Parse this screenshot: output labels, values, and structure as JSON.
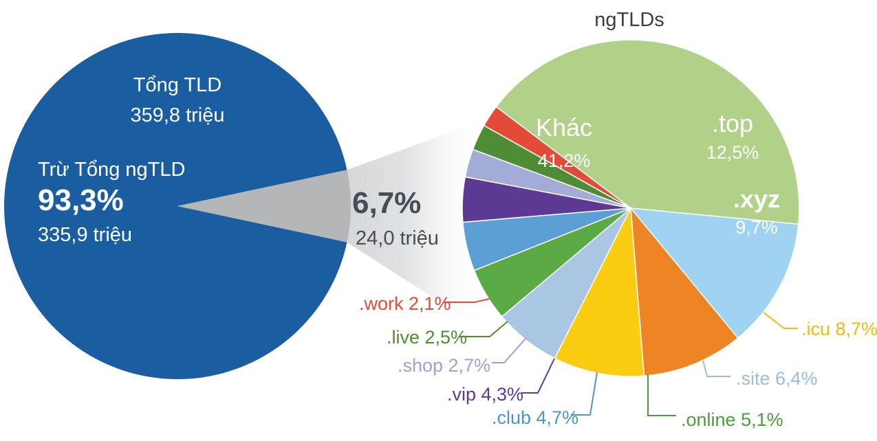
{
  "chart_data": [
    {
      "type": "pie",
      "title": "",
      "center_title": "Tổng TLD",
      "center_value": "359,8 triệu",
      "slices": [
        {
          "name": "Trừ Tổng ngTLD",
          "value": 93.3,
          "pct_label": "93,3%",
          "amount_label": "335,9 triệu",
          "color": "#1a5ea1"
        },
        {
          "name": "",
          "value": 6.7,
          "pct_label": "6,7%",
          "amount_label": "24,0 triệu",
          "color": "#b4b6b8"
        }
      ]
    },
    {
      "type": "pie",
      "title": "ngTLDs",
      "slices": [
        {
          "name": "Khác",
          "value": 41.2,
          "pct_label": "41,2%",
          "color": "#b0d187",
          "label_mode": "inside"
        },
        {
          "name": ".top",
          "value": 12.5,
          "pct_label": "12,5%",
          "color": "#9fd3f1",
          "label_mode": "inside"
        },
        {
          "name": ".xyz",
          "value": 9.7,
          "pct_label": "9,7%",
          "color": "#ee8423",
          "label_mode": "inside"
        },
        {
          "name": ".icu",
          "value": 8.7,
          "pct_label": "8,7%",
          "color": "#fccc12",
          "label_mode": "outside",
          "label_color": "#f6b80e"
        },
        {
          "name": ".site",
          "value": 6.4,
          "pct_label": "6,4%",
          "color": "#a9c7e3",
          "label_mode": "outside",
          "label_color": "#9cbcdb"
        },
        {
          "name": ".online",
          "value": 5.1,
          "pct_label": "5,1%",
          "color": "#5aab45",
          "label_mode": "outside",
          "label_color": "#4a9e3a"
        },
        {
          "name": ".club",
          "value": 4.7,
          "pct_label": "4,7%",
          "color": "#5b9fd5",
          "label_mode": "outside",
          "label_color": "#4c93cf"
        },
        {
          "name": ".vip",
          "value": 4.3,
          "pct_label": "4,3%",
          "color": "#5c3a93",
          "label_mode": "outside",
          "label_color": "#5c3a93"
        },
        {
          "name": ".shop",
          "value": 2.7,
          "pct_label": "2,7%",
          "color": "#a3acd6",
          "label_mode": "outside",
          "label_color": "#9aa4d0"
        },
        {
          "name": ".live",
          "value": 2.5,
          "pct_label": "2,5%",
          "color": "#4e8c36",
          "label_mode": "outside",
          "label_color": "#4e8c36"
        },
        {
          "name": ".work",
          "value": 2.1,
          "pct_label": "2,1%",
          "color": "#e34b38",
          "label_mode": "outside",
          "label_color": "#e34b38"
        }
      ]
    }
  ]
}
